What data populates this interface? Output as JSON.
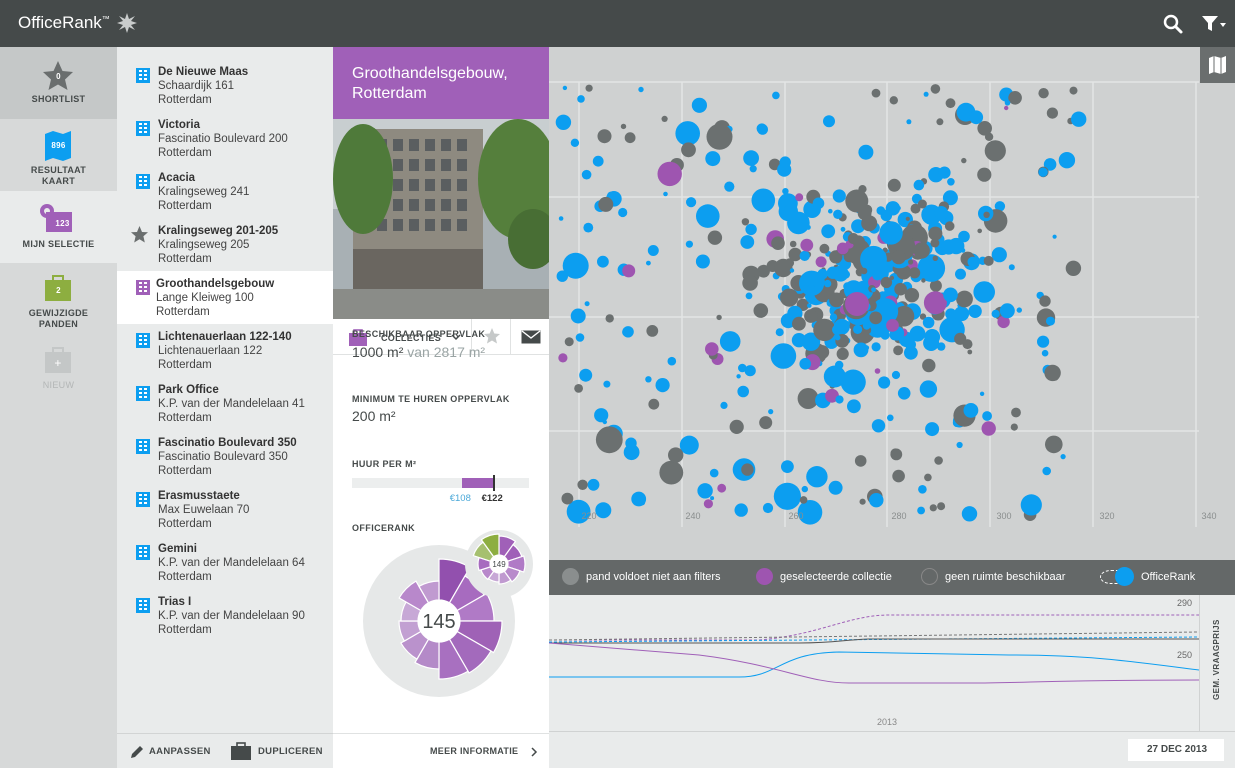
{
  "app": {
    "title": "OfficeRank",
    "trademark": "™"
  },
  "nav": {
    "shortlist": {
      "label": "SHORTLIST",
      "count": "0"
    },
    "resultaat": {
      "label1": "RESULTAAT",
      "label2": "KAART",
      "count": "896"
    },
    "selectie": {
      "label": "MIJN SELECTIE",
      "count": "123"
    },
    "gewijzigde": {
      "label1": "GEWIJZIGDE",
      "label2": "PANDEN",
      "count": "2"
    },
    "nieuw": {
      "label": "NIEUW"
    }
  },
  "list": [
    {
      "name": "De Nieuwe Maas",
      "address": "Schaardijk 161",
      "city": "Rotterdam",
      "icon": "building-icon"
    },
    {
      "name": "Victoria",
      "address": "Fascinatio Boulevard 200",
      "city": "Rotterdam",
      "icon": "building-icon"
    },
    {
      "name": "Acacia",
      "address": "Kralingseweg 241",
      "city": "Rotterdam",
      "icon": "building-icon"
    },
    {
      "name": "Kralingseweg 201-205",
      "address": "Kralingseweg 205",
      "city": "Rotterdam",
      "icon": "star-icon"
    },
    {
      "name": "Groothandelsgebouw",
      "address": "Lange Kleiweg 100",
      "city": "Rotterdam",
      "icon": "building-icon"
    },
    {
      "name": "Lichtenauerlaan 122-140",
      "address": "Lichtenauerlaan 122",
      "city": "Rotterdam",
      "icon": "building-icon"
    },
    {
      "name": "Park Office",
      "address": "K.P. van der Mandelelaan 41",
      "city": "Rotterdam",
      "icon": "building-icon"
    },
    {
      "name": "Fascinatio Boulevard 350",
      "address": "Fascinatio Boulevard 350",
      "city": "Rotterdam",
      "icon": "building-icon"
    },
    {
      "name": "Erasmusstaete",
      "address": "Max Euwelaan 70",
      "city": "Rotterdam",
      "icon": "building-icon"
    },
    {
      "name": "Gemini",
      "address": "K.P. van der Mandelelaan 64",
      "city": "Rotterdam",
      "icon": "building-icon"
    },
    {
      "name": "Trias I",
      "address": "K.P. van der Mandelelaan 90",
      "city": "Rotterdam",
      "icon": "building-icon"
    }
  ],
  "list_footer": {
    "edit": "AANPASSEN",
    "duplicate": "DUPLICEREN"
  },
  "detail": {
    "title1": "Groothandelsgebouw,",
    "title2": "Rotterdam",
    "collecties": "COLLECTIES",
    "beschikbaar_label": "BESCHIKBAAR OPPERVLAK",
    "beschikbaar_value": "1000 m²",
    "beschikbaar_total": "van 2817 m²",
    "minimum_label": "MINIMUM TE HUREN OPPERVLAK",
    "minimum_value": "200 m²",
    "huur_label": "HUUR PER M²",
    "huur_low": "€108",
    "huur_high": "€122",
    "huur_range_fraction": [
      0.62,
      0.8
    ],
    "officerank_label": "OFFICERANK",
    "officerank_value": "145",
    "officerank_small": "149",
    "meer": "MEER INFORMATIE"
  },
  "scatter": {
    "x_ticks": [
      "220",
      "240",
      "260",
      "280",
      "300",
      "320",
      "340"
    ],
    "colors": {
      "blue": "#0c9ef0",
      "gray": "#6b7070",
      "purple": "#9e55b0"
    }
  },
  "legend": {
    "filters": "pand voldoet niet aan filters",
    "collectie": "geselecteerde collectie",
    "geen": "geen ruimte beschikbaar",
    "officerank": "OfficeRank"
  },
  "trend": {
    "y_top": "290",
    "y_mid": "250",
    "year": "2013",
    "axis_label": "GEM. VRAAGPRIJS"
  },
  "footer": {
    "date": "27 DEC 2013"
  }
}
